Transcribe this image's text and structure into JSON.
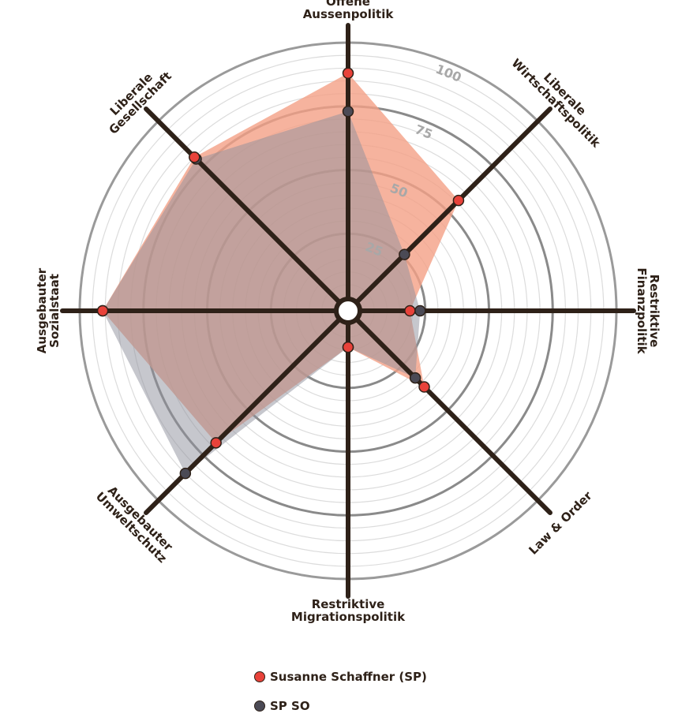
{
  "chart_data": {
    "type": "radar",
    "categories": [
      "Offene Aussenpolitik",
      "Liberale Wirtschaftspolitik",
      "Restriktive Finanzpolitik",
      "Law & Order",
      "Restriktive Migrationspolitik",
      "Ausgebauter Umweltschutz",
      "Ausgebauter Sozialstaat",
      "Liberale Gesellschaft"
    ],
    "series": [
      {
        "name": "Susanne Schaffner (SP)",
        "color": "#e8423a",
        "fill": "#f4a086",
        "values": [
          88,
          56,
          19,
          37,
          9,
          68,
          91,
          80
        ]
      },
      {
        "name": "SP SO",
        "color": "#4b4a55",
        "fill": "#8d909c",
        "values": [
          73,
          26,
          23,
          32,
          9,
          85,
          91,
          79
        ]
      }
    ],
    "ylim": [
      0,
      100
    ],
    "yticks": [
      25,
      50,
      75,
      100
    ],
    "grid": true
  }
}
